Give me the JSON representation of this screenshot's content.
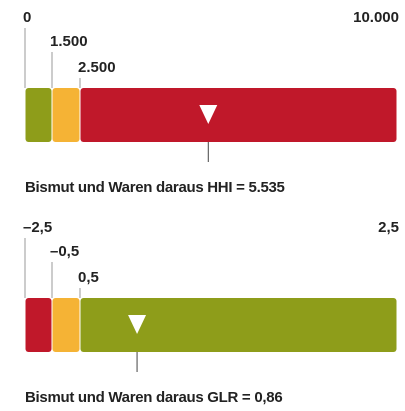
{
  "chart_data": [
    {
      "type": "gauge",
      "xlim": [
        0,
        10000
      ],
      "xticks": [
        {
          "value": 0,
          "label": "0"
        },
        {
          "value": 1500,
          "label": "1.500"
        },
        {
          "value": 2500,
          "label": "2.500"
        },
        {
          "value": 10000,
          "label": "10.000"
        }
      ],
      "band_colors": [
        "#8e9d1a",
        "#f5b335",
        "#c0182a"
      ],
      "label": "Bismut und Waren daraus HHI =",
      "values": [
        5535
      ],
      "value_labels": [
        "5.535"
      ]
    },
    {
      "type": "gauge",
      "xlim": [
        -2.5,
        2.5
      ],
      "xticks": [
        {
          "value": -2.5,
          "label": "–2,5"
        },
        {
          "value": -0.5,
          "label": "–0,5"
        },
        {
          "value": 0.5,
          "label": "0,5"
        },
        {
          "value": 2.5,
          "label": "2,5"
        }
      ],
      "band_colors": [
        "#c0182a",
        "#f5b335",
        "#8e9d1a"
      ],
      "label": "Bismut und Waren daraus GLR =",
      "values": [
        0.86
      ],
      "value_labels": [
        "0,86"
      ]
    }
  ]
}
